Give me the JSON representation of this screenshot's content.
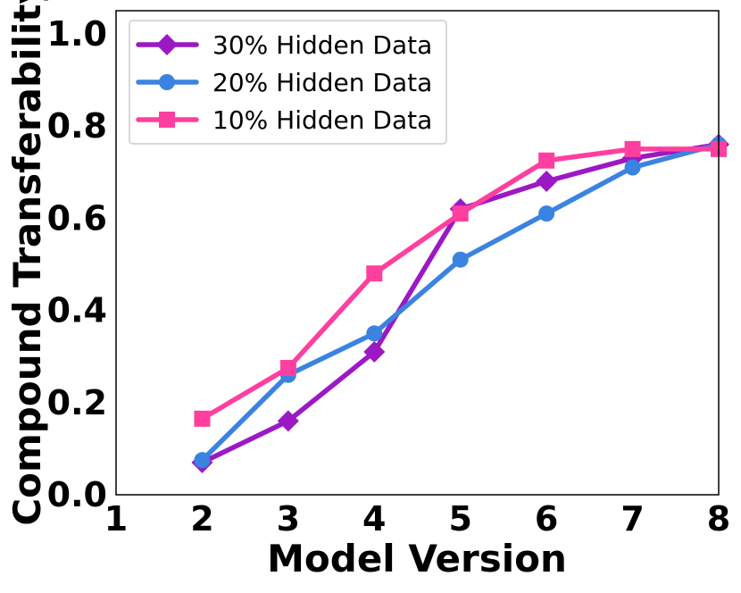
{
  "chart_data": {
    "type": "line",
    "xlabel": "Model Version",
    "ylabel": "Compound Transferability",
    "xlim": [
      1,
      8
    ],
    "ylim": [
      0,
      1.05
    ],
    "xticks": [
      "1",
      "2",
      "3",
      "4",
      "5",
      "6",
      "7",
      "8"
    ],
    "yticks": [
      "0.0",
      "0.2",
      "0.4",
      "0.6",
      "0.8",
      "1.0"
    ],
    "grid": false,
    "legend_position": "top-left",
    "x": [
      2,
      3,
      4,
      5,
      6,
      7,
      8
    ],
    "series": [
      {
        "name": "30% Hidden Data",
        "color": "#9b19c4",
        "marker": "diamond",
        "values": [
          0.07,
          0.16,
          0.31,
          0.62,
          0.68,
          0.73,
          0.76
        ]
      },
      {
        "name": "20% Hidden Data",
        "color": "#3b83e0",
        "marker": "circle",
        "values": [
          0.075,
          0.26,
          0.35,
          0.51,
          0.61,
          0.71,
          0.76
        ]
      },
      {
        "name": "10% Hidden Data",
        "color": "#ff3fa0",
        "marker": "square",
        "values": [
          0.165,
          0.275,
          0.48,
          0.61,
          0.725,
          0.75,
          0.75
        ]
      }
    ]
  }
}
